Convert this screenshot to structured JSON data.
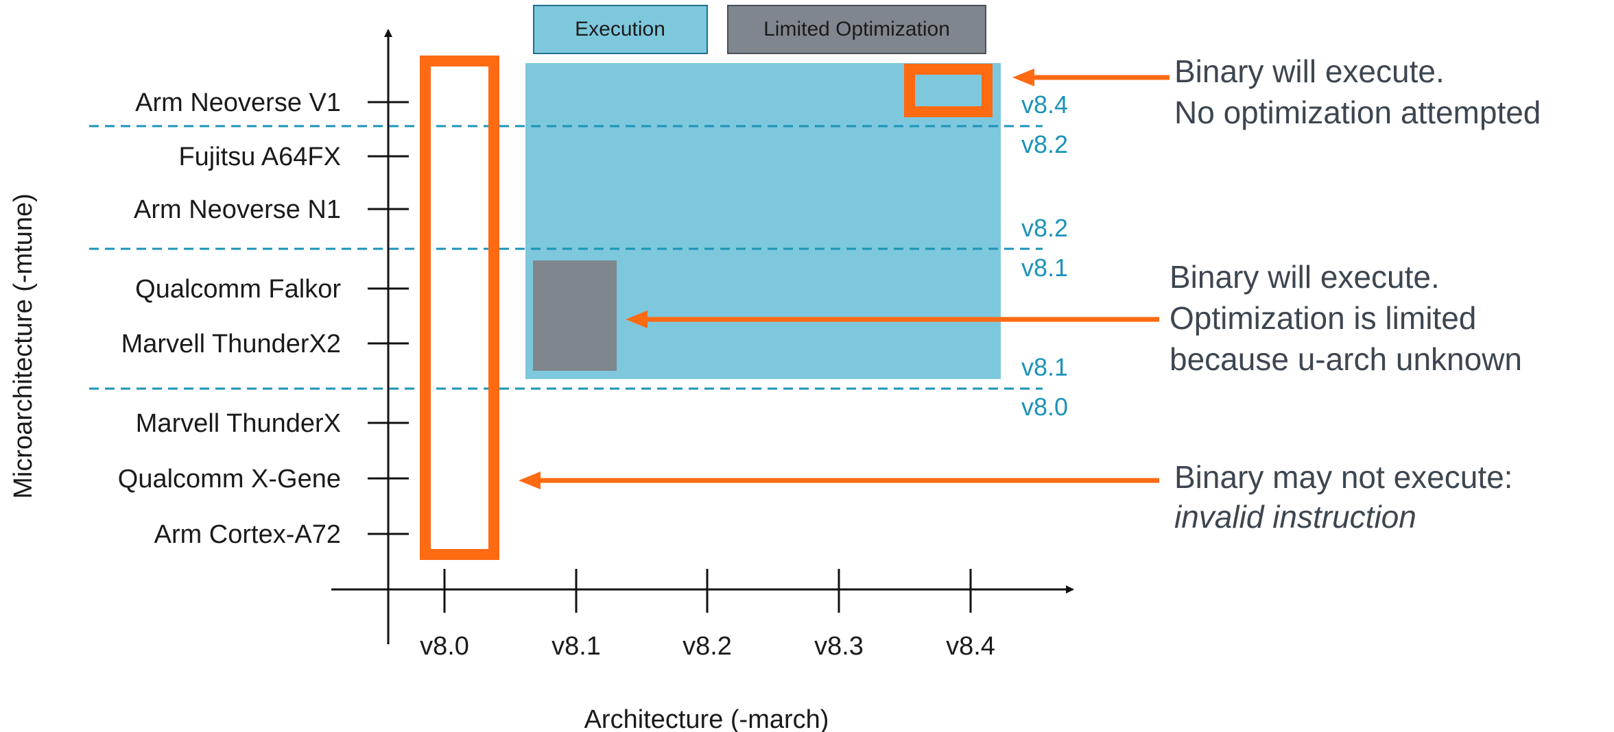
{
  "legend": [
    {
      "label": "Execution",
      "color": "#7ec8dd"
    },
    {
      "label": "Limited Optimization",
      "color": "#7f868d"
    }
  ],
  "y_axis": {
    "title": "Microarchitecture (-mtune)",
    "labels": [
      "Arm Neoverse V1",
      "Fujitsu A64FX",
      "Arm Neoverse N1",
      "Qualcomm Falkor",
      "Marvell ThunderX2",
      "Marvell ThunderX",
      "Qualcomm X-Gene",
      "Arm Cortex-A72"
    ]
  },
  "x_axis": {
    "title": "Architecture (-march)",
    "labels": [
      "v8.0",
      "v8.1",
      "v8.2",
      "v8.3",
      "v8.4"
    ]
  },
  "boundaries": [
    {
      "above": "v8.4",
      "below": "v8.2"
    },
    {
      "above": "v8.2",
      "below": "v8.1"
    },
    {
      "above": "v8.1",
      "below": "v8.0"
    }
  ],
  "annotations": [
    {
      "line1": "Binary will execute.",
      "line2": "No optimization attempted"
    },
    {
      "line1": "Binary will execute.",
      "line2": "Optimization is limited",
      "line3": "because u-arch unknown"
    },
    {
      "line1": "Binary may not execute:",
      "line2": "invalid instruction"
    }
  ],
  "colors": {
    "execution": "#7ec8dd",
    "limited": "#7f868d",
    "highlight": "#ff6a13",
    "boundary": "#1a93b8",
    "axis": "#111111",
    "note_text": "#3d4650"
  }
}
